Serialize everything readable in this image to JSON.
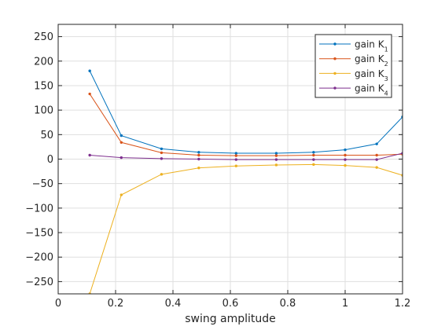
{
  "chart_data": {
    "type": "line",
    "xlabel": "swing amplitude",
    "ylabel": "",
    "title": "",
    "xlim": [
      0,
      1.2
    ],
    "ylim": [
      -275,
      275
    ],
    "xticks": [
      0,
      0.2,
      0.4,
      0.6,
      0.8,
      1,
      1.2
    ],
    "xtick_labels": [
      "0",
      "0.2",
      "0.4",
      "0.6",
      "0.8",
      "1",
      "1.2"
    ],
    "yticks": [
      250,
      200,
      150,
      100,
      50,
      0,
      -50,
      -100,
      -150,
      -200,
      -250
    ],
    "ytick_labels": [
      "250",
      "200",
      "150",
      "100",
      "50",
      "0",
      "−50",
      "−100",
      "−150",
      "−200",
      "−250"
    ],
    "grid": true,
    "legend_position": "top-right",
    "x": [
      0.11,
      0.22,
      0.36,
      0.49,
      0.62,
      0.76,
      0.89,
      1.0,
      1.11,
      1.2
    ],
    "series": [
      {
        "name": "gain K",
        "subscript": "1",
        "color": "#0072BD",
        "values": [
          180,
          48,
          21,
          14,
          12,
          12,
          14,
          19,
          31,
          86
        ]
      },
      {
        "name": "gain K",
        "subscript": "2",
        "color": "#D95319",
        "values": [
          133,
          34,
          13,
          8,
          7,
          7,
          8,
          8,
          8,
          10
        ]
      },
      {
        "name": "gain K",
        "subscript": "3",
        "color": "#EDB120",
        "values": [
          -275,
          -73,
          -31,
          -18,
          -14,
          -12,
          -11,
          -13,
          -17,
          -33
        ]
      },
      {
        "name": "gain K",
        "subscript": "4",
        "color": "#7E2F8E",
        "values": [
          8,
          3,
          1,
          0,
          -1,
          -1,
          -1,
          -1,
          -1,
          12
        ]
      }
    ]
  }
}
